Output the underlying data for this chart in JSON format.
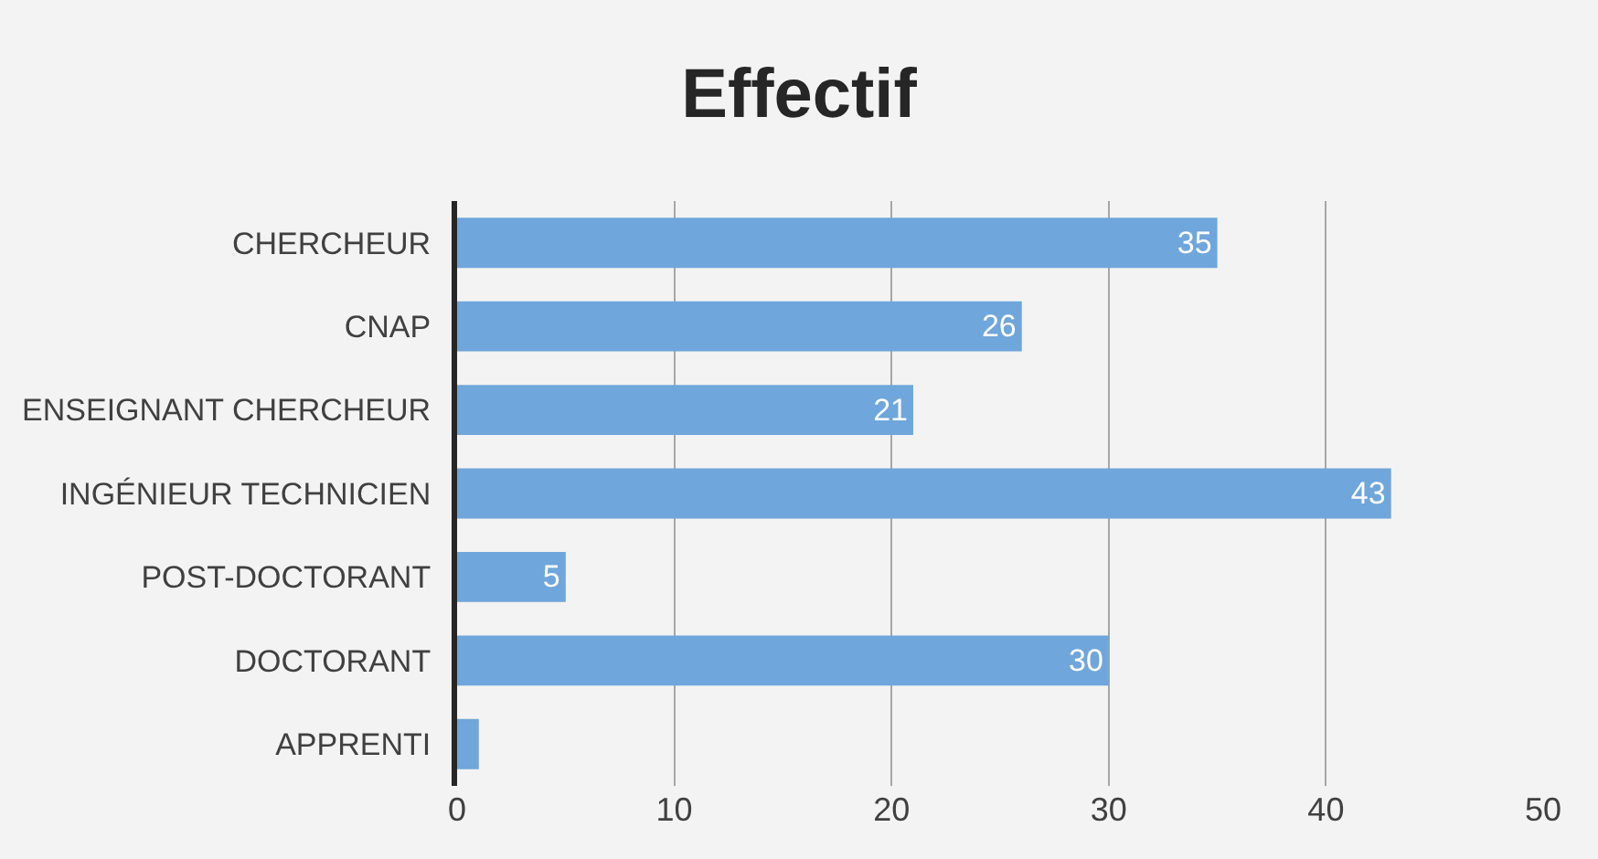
{
  "chart_data": {
    "type": "bar",
    "orientation": "horizontal",
    "title": "Effectif",
    "categories": [
      "CHERCHEUR",
      "CNAP",
      "ENSEIGNANT CHERCHEUR",
      "INGÉNIEUR TECHNICIEN",
      "POST-DOCTORANT",
      "DOCTORANT",
      "APPRENTI"
    ],
    "values": [
      35,
      26,
      21,
      43,
      5,
      30,
      1
    ],
    "value_labels": [
      "35",
      "26",
      "21",
      "43",
      "5",
      "30",
      null
    ],
    "color": "#6fa6db",
    "xlim": [
      0,
      50
    ],
    "xticks": [
      0,
      10,
      20,
      30,
      40,
      50
    ],
    "grid": "x",
    "legend": false
  }
}
